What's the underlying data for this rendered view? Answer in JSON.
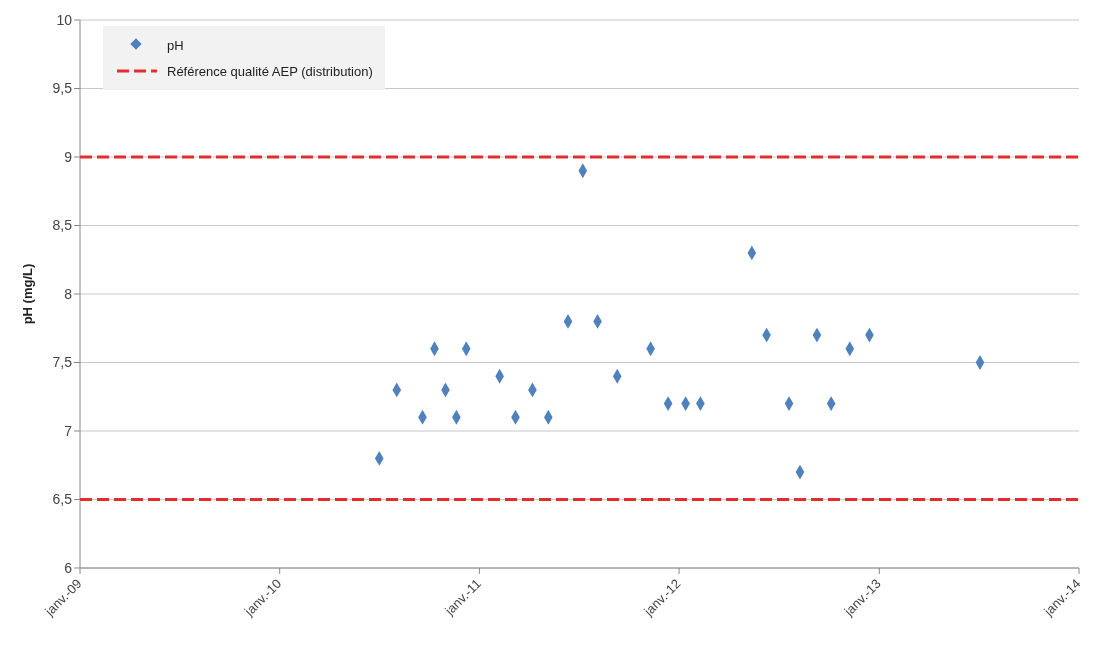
{
  "chart_data": {
    "type": "scatter",
    "ylabel": "pH (mg/L)",
    "x": [
      "2010-07-02",
      "2010-08-03",
      "2010-09-19",
      "2010-10-11",
      "2010-10-31",
      "2010-11-20",
      "2010-12-08",
      "2011-02-07",
      "2011-03-08",
      "2011-04-08",
      "2011-05-07",
      "2011-06-12",
      "2011-07-09",
      "2011-08-05",
      "2011-09-10",
      "2011-11-10",
      "2011-12-12",
      "2012-01-13",
      "2012-02-09",
      "2012-05-13",
      "2012-06-09",
      "2012-07-20",
      "2012-08-09",
      "2012-09-09",
      "2012-10-05",
      "2012-11-08",
      "2012-12-14",
      "2013-07-04"
    ],
    "series": [
      {
        "name": "pH",
        "color": "#4f81bd",
        "values": [
          6.8,
          7.3,
          7.1,
          7.6,
          7.3,
          7.1,
          7.6,
          7.4,
          7.1,
          7.3,
          7.1,
          7.8,
          8.9,
          7.8,
          7.4,
          7.6,
          7.2,
          7.2,
          7.2,
          8.3,
          7.7,
          7.2,
          6.7,
          7.7,
          7.2,
          7.6,
          7.7,
          7.5
        ]
      },
      {
        "type": "line",
        "name": "Référence qualité AEP (distribution)",
        "color": "#e32c2c",
        "line_style": "dashed",
        "marker": "none",
        "x": [
          "2009-01",
          "2014-01"
        ],
        "values": [
          6.5,
          6.5
        ]
      },
      {
        "type": "line",
        "color": "#e32c2c",
        "line_style": "dashed",
        "marker": "none",
        "x": [
          "2009-01",
          "2014-01"
        ],
        "values": [
          9,
          9
        ]
      }
    ],
    "xlim": [
      "2009-01",
      "2014-01"
    ],
    "xticks": [
      {
        "value": "2009-01",
        "label": "janv.-09"
      },
      {
        "value": "2010-01",
        "label": "janv.-10"
      },
      {
        "value": "2011-01",
        "label": "janv.-11"
      },
      {
        "value": "2012-01",
        "label": "janv.-12"
      },
      {
        "value": "2013-01",
        "label": "janv.-13"
      },
      {
        "value": "2014-01",
        "label": "janv.-14"
      }
    ],
    "ylim": [
      6,
      10
    ],
    "yticks": [
      {
        "value": 6,
        "label": "6"
      },
      {
        "value": 6.5,
        "label": "6,5"
      },
      {
        "value": 7,
        "label": "7"
      },
      {
        "value": 7.5,
        "label": "7,5"
      },
      {
        "value": 8,
        "label": "8"
      },
      {
        "value": 8.5,
        "label": "8,5"
      },
      {
        "value": 9,
        "label": "9"
      },
      {
        "value": 9.5,
        "label": "9,5"
      },
      {
        "value": 10,
        "label": "10"
      }
    ],
    "grid": "y",
    "legend": "top left",
    "marker": "diamond"
  }
}
